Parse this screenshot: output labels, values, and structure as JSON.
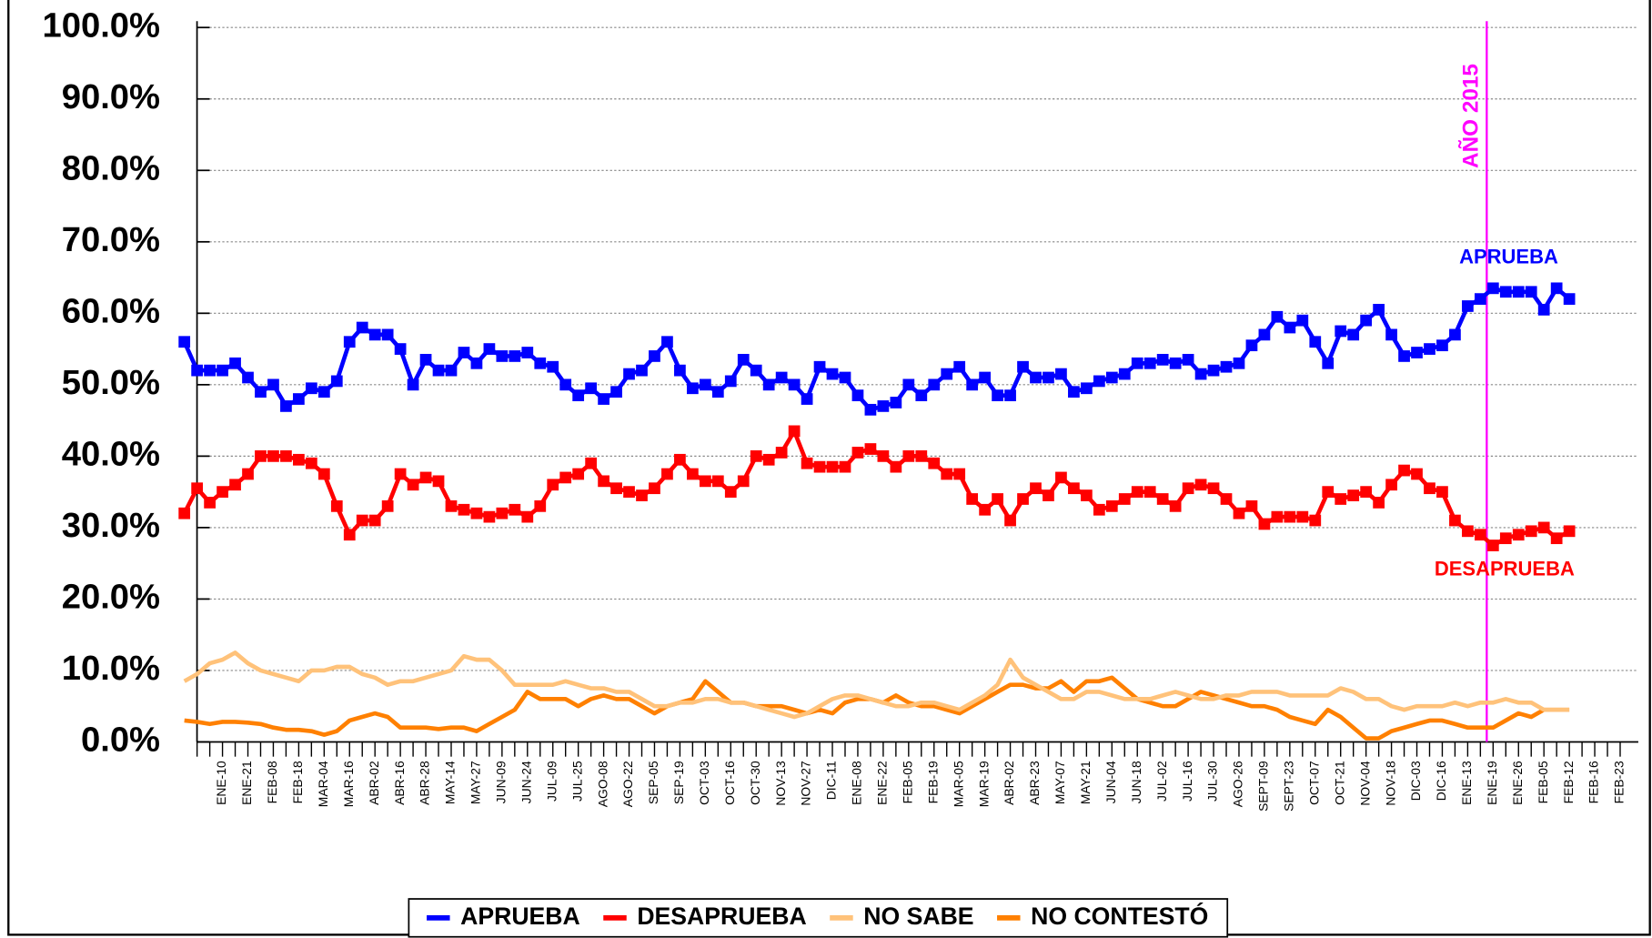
{
  "chart_data": {
    "type": "line",
    "categories": [
      null,
      null,
      null,
      "ENE-10",
      null,
      "ENE-21",
      null,
      "FEB-08",
      null,
      "FEB-18",
      null,
      "MAR-04",
      null,
      "MAR-16",
      null,
      "ABR-02",
      null,
      "ABR-16",
      null,
      "ABR-28",
      null,
      "MAY-14",
      null,
      "MAY-27",
      null,
      "JUN-09",
      null,
      "JUN-24",
      null,
      "JUL-09",
      null,
      "JUL-25",
      null,
      "AGO-08",
      null,
      "AGO-22",
      null,
      "SEP-05",
      null,
      "SEP-19",
      null,
      "OCT-03",
      null,
      "OCT-16",
      null,
      "OCT-30",
      null,
      "NOV-13",
      null,
      "NOV-27",
      null,
      "DIC-11",
      null,
      "ENE-08",
      null,
      "ENE-22",
      null,
      "FEB-05",
      null,
      "FEB-19",
      null,
      "MAR-05",
      null,
      "MAR-19",
      null,
      "ABR-02",
      null,
      "ABR-23",
      null,
      "MAY-07",
      null,
      "MAY-21",
      null,
      "JUN-04",
      null,
      "JUN-18",
      null,
      "JUL-02",
      null,
      "JUL-16",
      null,
      "JUL-30",
      null,
      "AGO-26",
      null,
      "SEPT-09",
      null,
      "SEPT-23",
      null,
      "OCT-07",
      null,
      "OCT-21",
      null,
      "NOV-04",
      null,
      "NOV-18",
      null,
      "DIC-03",
      null,
      "DIC-16",
      null,
      "ENE-13",
      null,
      "ENE-19",
      null,
      "ENE-26",
      null,
      "FEB-05",
      null,
      "FEB-12",
      null,
      "FEB-16",
      null,
      "FEB-23"
    ],
    "series": [
      {
        "name": "APRUEBA",
        "color": "#0000ff",
        "markers": true,
        "values": [
          56,
          52,
          52,
          52,
          53,
          51,
          49,
          50,
          47,
          48,
          49.5,
          49,
          50.5,
          56,
          58,
          57,
          57,
          55,
          50,
          53.5,
          52,
          52,
          54.5,
          53,
          55,
          54,
          54,
          54.5,
          53,
          52.5,
          50,
          48.5,
          49.5,
          48,
          49,
          51.5,
          52,
          54,
          56,
          52,
          49.5,
          50,
          49,
          50.5,
          53.5,
          52,
          50,
          51,
          50,
          48,
          52.5,
          51.5,
          51,
          48.5,
          46.5,
          47,
          47.5,
          50,
          48.5,
          50,
          51.5,
          52.5,
          50,
          51,
          48.5,
          48.5,
          52.5,
          51,
          51,
          51.5,
          49,
          49.5,
          50.5,
          51,
          51.5,
          53,
          53,
          53.5,
          53,
          53.5,
          51.5,
          52,
          52.5,
          53,
          55.5,
          57,
          59.5,
          58,
          59,
          56,
          53,
          57.5,
          57,
          59,
          60.5,
          57,
          54,
          54.5,
          55,
          55.5,
          57,
          61,
          62,
          63.5,
          63,
          63,
          63,
          60.5,
          63.5,
          62,
          null,
          null,
          null,
          null
        ]
      },
      {
        "name": "DESAPRUEBA",
        "color": "#ff0000",
        "markers": true,
        "values": [
          32,
          35.5,
          33.5,
          35,
          36,
          37.5,
          40,
          40,
          40,
          39.5,
          39,
          37.5,
          33,
          29,
          31,
          31,
          33,
          37.5,
          36,
          37,
          36.5,
          33,
          32.5,
          32,
          31.5,
          32,
          32.5,
          31.5,
          33,
          36,
          37,
          37.5,
          39,
          36.5,
          35.5,
          35,
          34.5,
          35.5,
          37.5,
          39.5,
          37.5,
          36.5,
          36.5,
          35,
          36.5,
          40,
          39.5,
          40.5,
          43.5,
          39,
          38.5,
          38.5,
          38.5,
          40.5,
          41,
          40,
          38.5,
          40,
          40,
          39,
          37.5,
          37.5,
          34,
          32.5,
          34,
          31,
          34,
          35.5,
          34.5,
          37,
          35.5,
          34.5,
          32.5,
          33,
          34,
          35,
          35,
          34,
          33,
          35.5,
          36,
          35.5,
          34,
          32,
          33,
          30.5,
          31.5,
          31.5,
          31.5,
          31,
          35,
          34,
          34.5,
          35,
          33.5,
          36,
          38,
          37.5,
          35.5,
          35,
          31,
          29.5,
          29,
          27.5,
          28.5,
          29,
          29.5,
          30,
          28.5,
          29.5,
          null,
          null,
          null,
          null
        ]
      },
      {
        "name": "NO SABE",
        "color": "#ffc27a",
        "markers": false,
        "values": [
          8.5,
          9.5,
          11,
          11.5,
          12.5,
          11,
          10,
          9.5,
          9,
          8.5,
          10,
          10,
          10.5,
          10.5,
          9.5,
          9,
          8,
          8.5,
          8.5,
          9,
          9.5,
          10,
          12,
          11.5,
          11.5,
          10,
          8,
          8,
          8,
          8,
          8.5,
          8,
          7.5,
          7.5,
          7,
          7,
          6,
          5,
          5,
          5.5,
          5.5,
          6,
          6,
          5.5,
          5.5,
          5,
          4.5,
          4,
          3.5,
          4,
          5,
          6,
          6.5,
          6.5,
          6,
          5.5,
          5,
          5,
          5.5,
          5.5,
          5,
          4.5,
          5.5,
          6.5,
          8,
          11.5,
          9,
          8,
          7,
          6,
          6,
          7,
          7,
          6.5,
          6,
          6,
          6,
          6.5,
          7,
          6.5,
          6,
          6,
          6.5,
          6.5,
          7,
          7,
          7,
          6.5,
          6.5,
          6.5,
          6.5,
          7.5,
          7,
          6,
          6,
          5,
          4.5,
          5,
          5,
          5,
          5.5,
          5,
          5.5,
          5.5,
          6,
          5.5,
          5.5,
          4.5,
          4.5,
          4.5,
          null,
          null,
          null,
          null
        ]
      },
      {
        "name": "NO CONTESTÓ",
        "color": "#ff8000",
        "markers": false,
        "values": [
          3,
          2.8,
          2.5,
          2.8,
          2.8,
          2.7,
          2.5,
          2,
          1.7,
          1.7,
          1.5,
          1,
          1.5,
          3,
          3.5,
          4,
          3.5,
          2,
          2,
          2,
          1.8,
          2,
          2,
          1.5,
          2.5,
          3.5,
          4.5,
          7,
          6,
          6,
          6,
          5,
          6,
          6.5,
          6,
          6,
          5,
          4,
          5,
          5.5,
          6,
          8.5,
          7,
          5.5,
          5.5,
          5,
          5,
          5,
          4.5,
          4,
          4.5,
          4,
          5.5,
          6,
          6,
          5.5,
          6.5,
          5.5,
          5,
          5,
          4.5,
          4,
          5,
          6,
          7,
          8,
          8,
          7.5,
          7.5,
          8.5,
          7,
          8.5,
          8.5,
          9,
          7.5,
          6,
          5.5,
          5,
          5,
          6,
          7,
          6.5,
          6,
          5.5,
          5,
          5,
          4.5,
          3.5,
          3,
          2.5,
          4.5,
          3.5,
          2,
          0.5,
          0.5,
          1.5,
          2,
          2.5,
          3,
          3,
          2.5,
          2,
          2,
          2,
          3,
          4,
          3.5,
          4.5,
          4.5,
          4.5,
          null,
          null,
          null,
          null
        ]
      }
    ],
    "ylim": [
      0,
      100
    ],
    "yticks": [
      {
        "value": 0,
        "label": "0.0%"
      },
      {
        "value": 10,
        "label": "10.0%"
      },
      {
        "value": 20,
        "label": "20.0%"
      },
      {
        "value": 30,
        "label": "30.0%"
      },
      {
        "value": 40,
        "label": "40.0%"
      },
      {
        "value": 50,
        "label": "50.0%"
      },
      {
        "value": 60,
        "label": "60.0%"
      },
      {
        "value": 70,
        "label": "70.0%"
      },
      {
        "value": 80,
        "label": "80.0%"
      },
      {
        "value": 90,
        "label": "90.0%"
      },
      {
        "value": 100,
        "label": "100.0%"
      }
    ],
    "grid": true,
    "vline": {
      "label": "AÑO 2015",
      "x": 102.5,
      "color": "#ff00ff"
    },
    "annotations": [
      {
        "text": "APRUEBA",
        "color": "#0000ff"
      },
      {
        "text": "DESAPRUEBA",
        "color": "#ff0000"
      }
    ],
    "legend": "bottom"
  }
}
